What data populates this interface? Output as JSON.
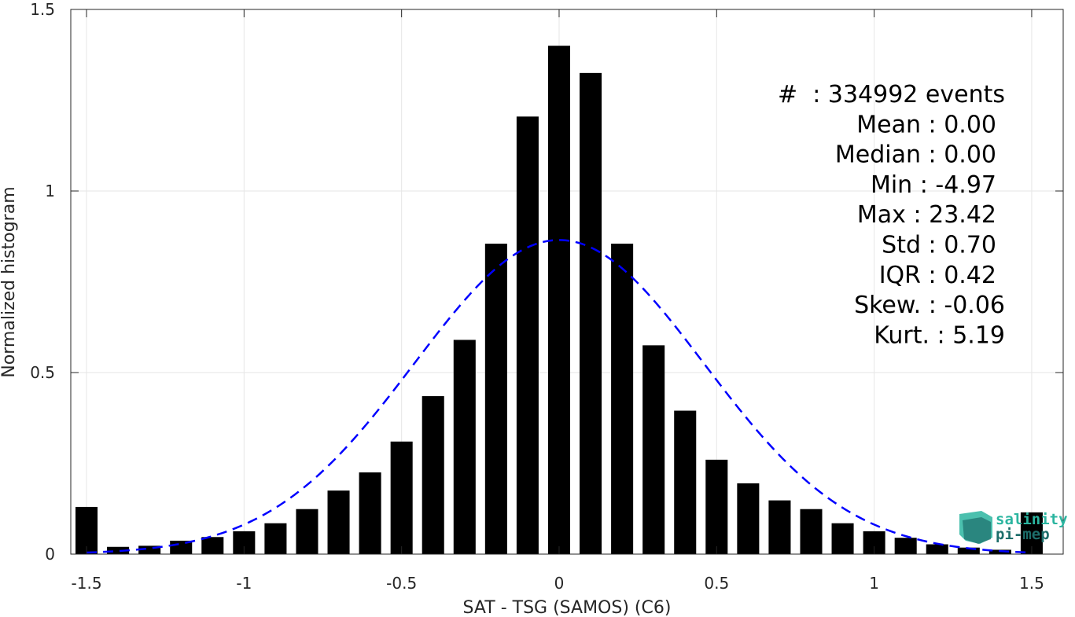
{
  "chart_data": {
    "type": "bar",
    "xlabel": "SAT - TSG (SAMOS) (C6)",
    "ylabel": "Normalized histogram",
    "xlim": [
      -1.55,
      1.6
    ],
    "ylim": [
      0,
      1.5
    ],
    "xticks": [
      -1.5,
      -1,
      -0.5,
      0,
      0.5,
      1,
      1.5
    ],
    "xtick_labels": [
      "-1.5",
      "-1",
      "-0.5",
      "0",
      "0.5",
      "1",
      "1.5"
    ],
    "yticks": [
      0,
      0.5,
      1,
      1.5
    ],
    "ytick_labels": [
      "0",
      "0.5",
      "1",
      "1.5"
    ],
    "grid": true,
    "bar_color": "#000000",
    "bar_width": 0.07,
    "x": [
      -1.5,
      -1.4,
      -1.3,
      -1.2,
      -1.1,
      -1.0,
      -0.9,
      -0.8,
      -0.7,
      -0.6,
      -0.5,
      -0.4,
      -0.3,
      -0.2,
      -0.1,
      0.0,
      0.1,
      0.2,
      0.3,
      0.4,
      0.5,
      0.6,
      0.7,
      0.8,
      0.9,
      1.0,
      1.1,
      1.2,
      1.3,
      1.4,
      1.5
    ],
    "values": [
      0.13,
      0.02,
      0.023,
      0.037,
      0.047,
      0.063,
      0.085,
      0.124,
      0.175,
      0.225,
      0.31,
      0.435,
      0.59,
      0.855,
      1.205,
      1.4,
      1.325,
      0.855,
      0.575,
      0.395,
      0.26,
      0.195,
      0.148,
      0.124,
      0.085,
      0.063,
      0.045,
      0.027,
      0.018,
      0.012,
      0.115
    ],
    "fit_curve": {
      "type": "gaussian",
      "mean": 0.0,
      "std": 0.46,
      "peak": 0.865,
      "color": "#0000ff",
      "style": "dashed"
    },
    "stats_lines": [
      "#  : 334992 events",
      "Mean : 0.00",
      "Median : 0.00",
      "Min : -4.97",
      "Max : 23.42",
      "Std : 0.70",
      "IQR : 0.42",
      "Skew. : -0.06",
      "Kurt. : 5.19"
    ]
  },
  "logo": {
    "line1": "salinity",
    "line2": "pi-mep",
    "color1": "#2bb5a0",
    "color2": "#1d6e6b"
  }
}
